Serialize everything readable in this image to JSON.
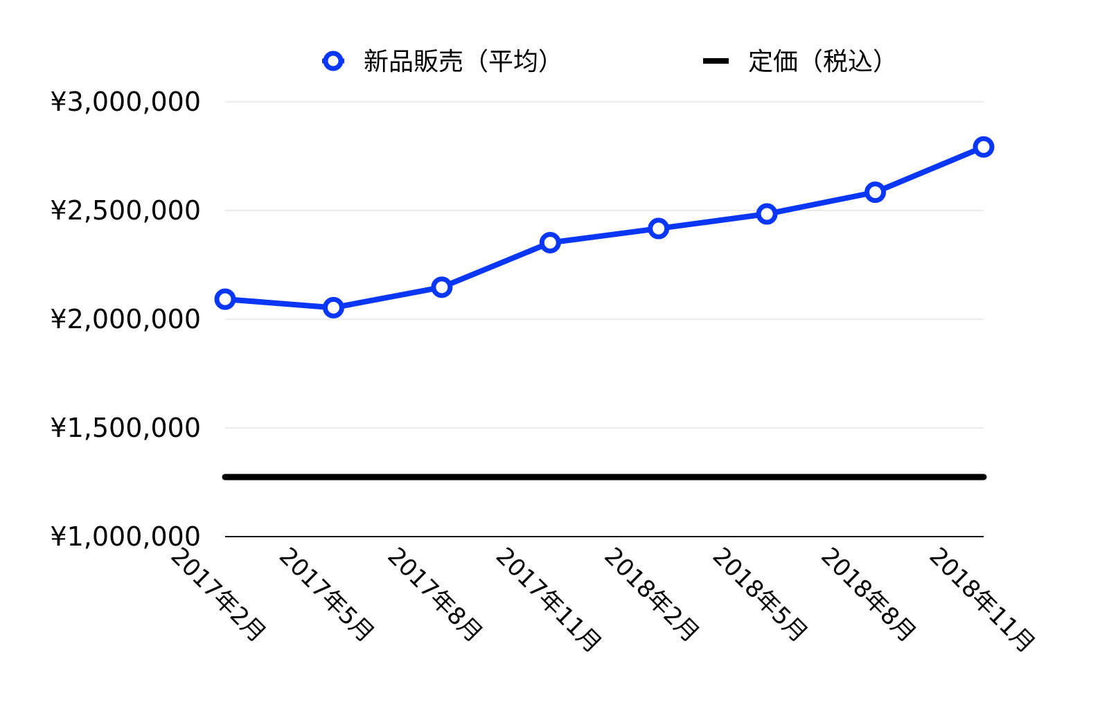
{
  "chart_data": {
    "type": "line",
    "categories": [
      "2017年2月",
      "2017年5月",
      "2017年8月",
      "2017年11月",
      "2018年2月",
      "2018年5月",
      "2018年8月",
      "2018年11月"
    ],
    "series": [
      {
        "name": "新品販売（平均）",
        "values": [
          2092000,
          2053000,
          2147000,
          2352000,
          2417000,
          2484000,
          2584000,
          2792000
        ],
        "color": "#0a36f5",
        "marker": "hollow-circle"
      },
      {
        "name": "定価（税込）",
        "values": [
          1274000,
          1274000,
          1274000,
          1274000,
          1274000,
          1274000,
          1274000,
          1274000
        ],
        "color": "#000000",
        "marker": "none"
      }
    ],
    "y_ticks": [
      "¥1,000,000",
      "¥1,500,000",
      "¥2,000,000",
      "¥2,500,000",
      "¥3,000,000"
    ],
    "y_tick_values": [
      1000000,
      1500000,
      2000000,
      2500000,
      3000000
    ],
    "ylim": [
      1000000,
      3000000
    ],
    "grid": true,
    "legend_position": "top",
    "title": "",
    "xlabel": "",
    "ylabel": ""
  }
}
